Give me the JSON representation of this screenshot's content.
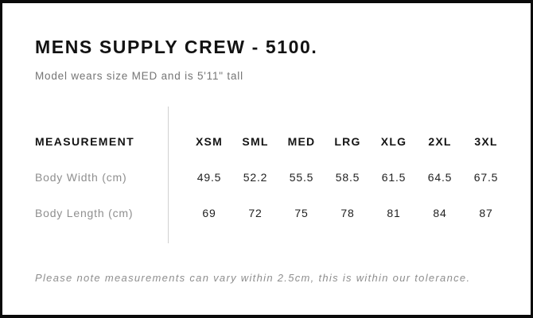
{
  "header": {
    "title": "MENS SUPPLY CREW - 5100.",
    "subtitle": "Model wears size MED and is 5'11\" tall"
  },
  "table": {
    "measurement_label": "MEASUREMENT",
    "sizes": [
      "XSM",
      "SML",
      "MED",
      "LRG",
      "XLG",
      "2XL",
      "3XL"
    ],
    "rows": [
      {
        "label": "Body Width (cm)",
        "values": [
          "49.5",
          "52.2",
          "55.5",
          "58.5",
          "61.5",
          "64.5",
          "67.5"
        ]
      },
      {
        "label": "Body Length (cm)",
        "values": [
          "69",
          "72",
          "75",
          "78",
          "81",
          "84",
          "87"
        ]
      }
    ]
  },
  "footer": {
    "note": "Please note measurements can vary within 2.5cm, this is within our tolerance."
  },
  "colors": {
    "frame": "#0a0a0a",
    "text_primary": "#141414",
    "text_muted": "#8f8f8f",
    "divider": "#d0d0d0"
  }
}
